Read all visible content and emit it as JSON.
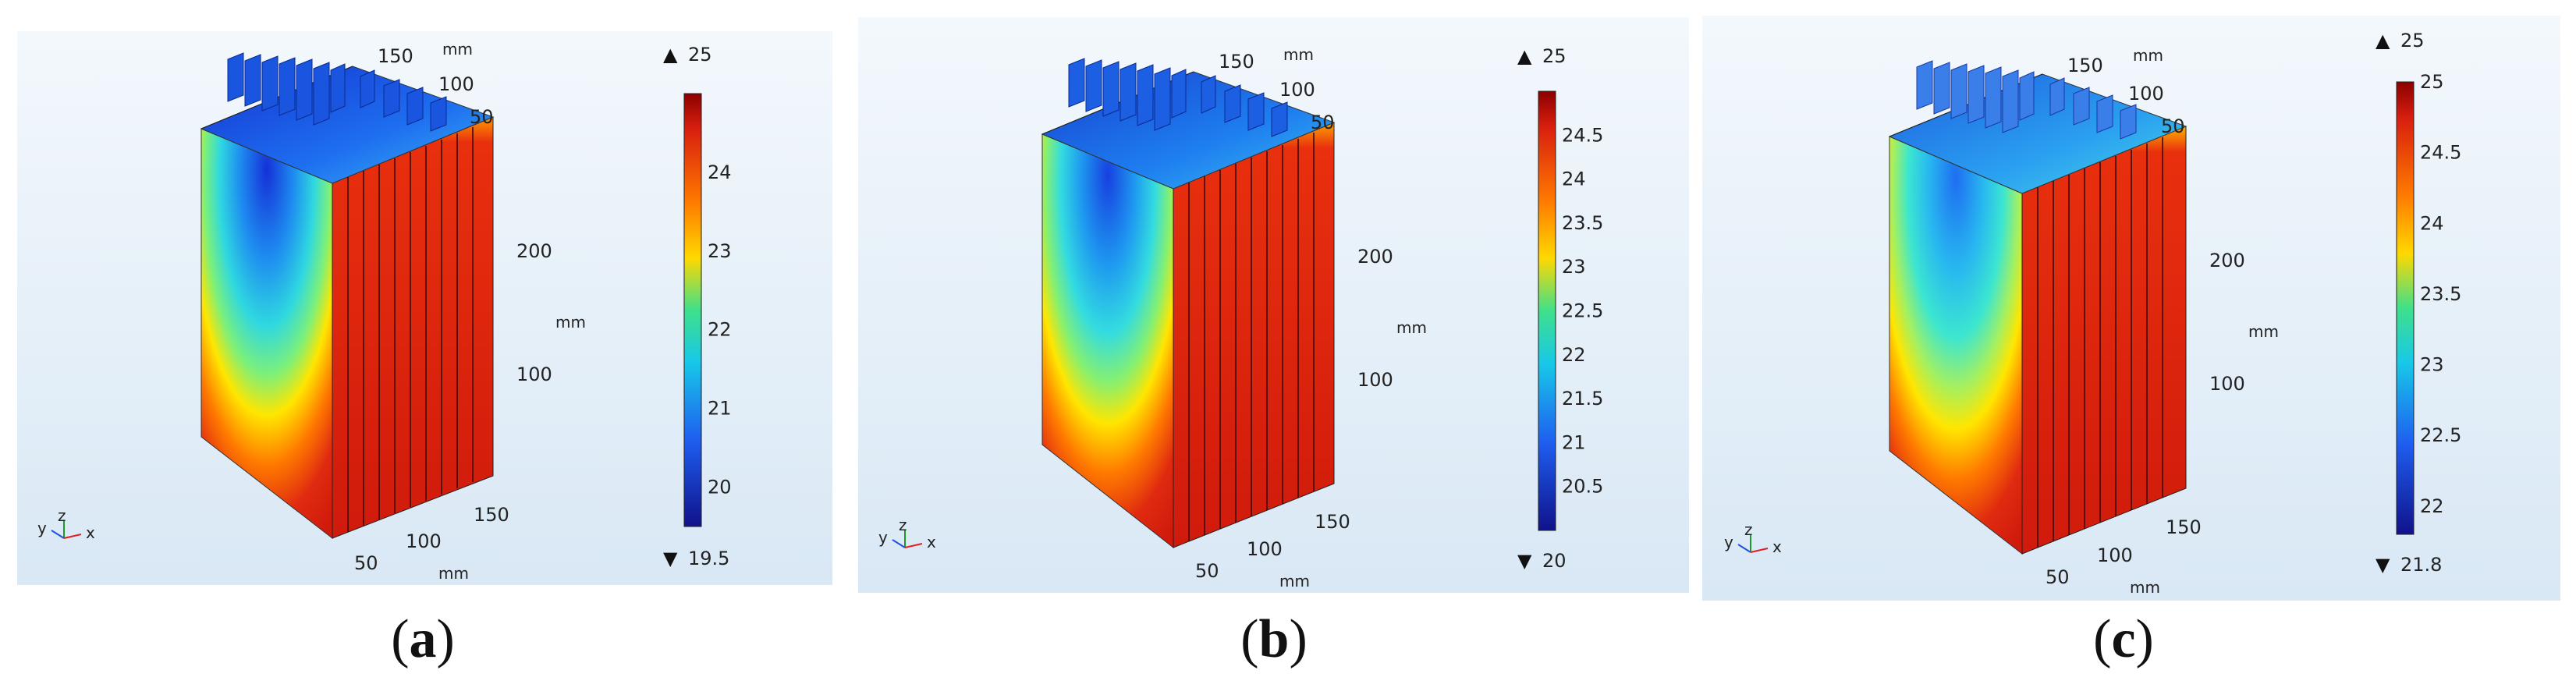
{
  "figure": {
    "panels": [
      {
        "id": "a",
        "caption_letter": "a",
        "axis_unit": "mm",
        "y_ticks_top": [
          "150",
          "100",
          "50"
        ],
        "z_ticks": [
          "200",
          "100"
        ],
        "x_ticks_bottom": [
          "150",
          "100",
          "50"
        ],
        "triad": {
          "y": "y",
          "z": "z",
          "x": "x"
        },
        "colorbar": {
          "max_label": "25",
          "min_label": "19.5",
          "ticks": [
            "24",
            "23",
            "22",
            "21",
            "20"
          ],
          "tick_values": [
            24,
            23,
            22,
            21,
            20
          ],
          "range": [
            19.5,
            25
          ]
        }
      },
      {
        "id": "b",
        "caption_letter": "b",
        "axis_unit": "mm",
        "y_ticks_top": [
          "150",
          "100",
          "50"
        ],
        "z_ticks": [
          "200",
          "100"
        ],
        "x_ticks_bottom": [
          "150",
          "100",
          "50"
        ],
        "triad": {
          "y": "y",
          "z": "z",
          "x": "x"
        },
        "colorbar": {
          "max_label": "25",
          "min_label": "20",
          "ticks": [
            "24.5",
            "24",
            "23.5",
            "23",
            "22.5",
            "22",
            "21.5",
            "21",
            "20.5"
          ],
          "tick_values": [
            24.5,
            24,
            23.5,
            23,
            22.5,
            22,
            21.5,
            21,
            20.5
          ],
          "range": [
            20,
            25
          ]
        }
      },
      {
        "id": "c",
        "caption_letter": "c",
        "axis_unit": "mm",
        "y_ticks_top": [
          "150",
          "100",
          "50"
        ],
        "z_ticks": [
          "200",
          "100"
        ],
        "x_ticks_bottom": [
          "150",
          "100",
          "50"
        ],
        "triad": {
          "y": "y",
          "z": "z",
          "x": "x"
        },
        "colorbar": {
          "max_label": "25",
          "min_label": "21.8",
          "ticks": [
            "25",
            "24.5",
            "24",
            "23.5",
            "23",
            "22.5",
            "22"
          ],
          "tick_values": [
            25,
            24.5,
            24,
            23.5,
            23,
            22.5,
            22
          ],
          "range": [
            21.8,
            25
          ]
        }
      }
    ],
    "colors": {
      "panel_bg_top": "#f1f7fc",
      "panel_bg_bottom": "#d9e8f6",
      "hot": "#d21a0e",
      "cold": "#1327c9"
    }
  }
}
